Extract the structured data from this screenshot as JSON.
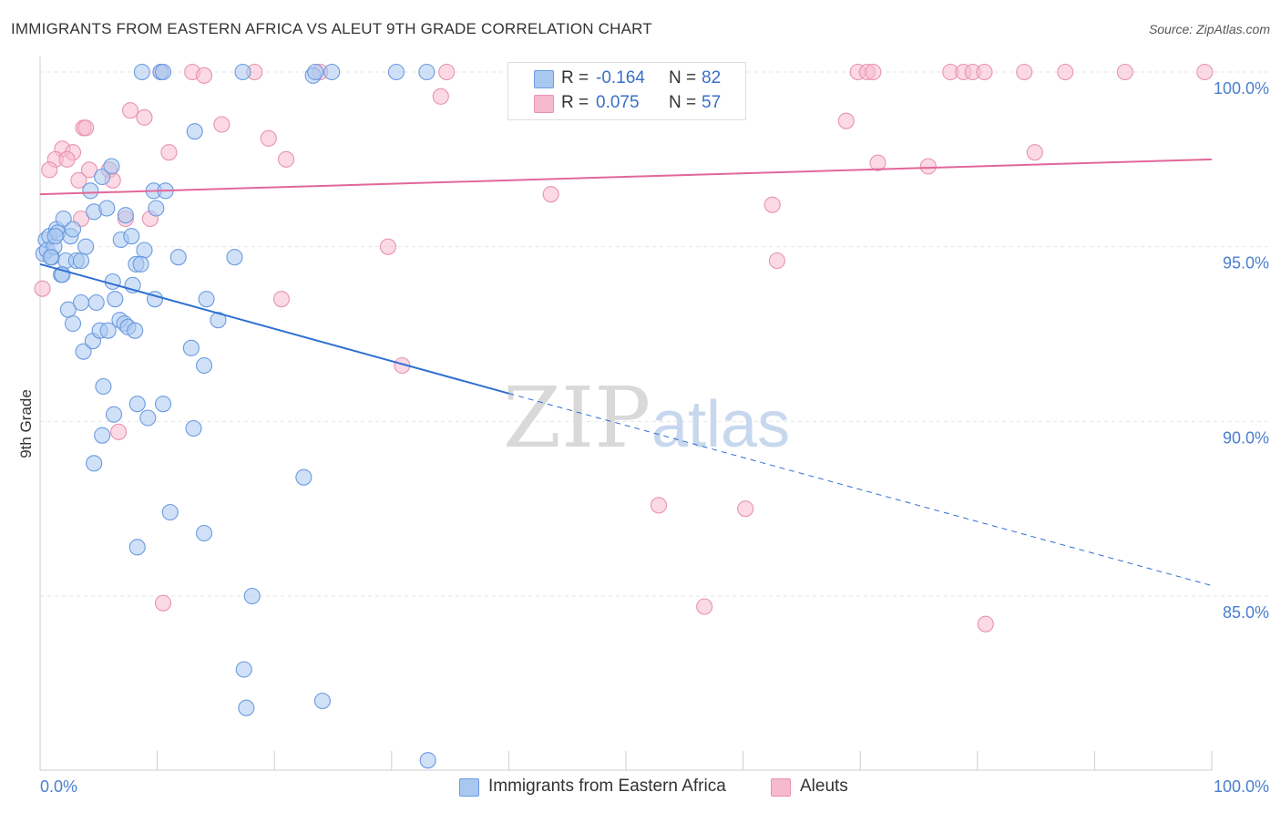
{
  "title": "IMMIGRANTS FROM EASTERN AFRICA VS ALEUT 9TH GRADE CORRELATION CHART",
  "source": "Source: ZipAtlas.com",
  "watermark": {
    "zip": "ZIP",
    "atlas": "atlas"
  },
  "colors": {
    "blue_fill": "#a9c8f0",
    "blue_stroke": "#6b9be0",
    "blue_line": "#2e6fd0",
    "pink_fill": "#f7b9cf",
    "pink_stroke": "#e893b1",
    "pink_line": "#e2679a",
    "grid": "#e6e6e6",
    "tick_label": "#4a7fd0"
  },
  "legend_top": [
    {
      "r_label": "R =",
      "r_value": "-0.164",
      "n_label": "N =",
      "n_value": "82"
    },
    {
      "r_label": "R =",
      "r_value": "0.075",
      "n_label": "N =",
      "n_value": "57"
    }
  ],
  "legend_bottom": [
    "Immigrants from Eastern Africa",
    "Aleuts"
  ],
  "chart_data": {
    "type": "scatter",
    "xlabel": "",
    "ylabel": "9th Grade",
    "xlim": [
      0,
      100
    ],
    "ylim": [
      80,
      100.5
    ],
    "x_tick_labels": [
      "0.0%",
      "100.0%"
    ],
    "y_ticks": [
      {
        "value": 85,
        "label": "85.0%"
      },
      {
        "value": 90,
        "label": "90.0%"
      },
      {
        "value": 95,
        "label": "95.0%"
      },
      {
        "value": 100,
        "label": "100.0%"
      }
    ],
    "series": [
      {
        "name": "Immigrants from Eastern Africa",
        "color": "blue",
        "trend": {
          "x0": 0,
          "y0": 94.5,
          "x1": 40,
          "y1": 90.8,
          "dash_to_x": 100,
          "dash_to_y": 85.3
        },
        "points": [
          [
            8.7,
            100
          ],
          [
            10.3,
            100
          ],
          [
            10.5,
            100
          ],
          [
            17.3,
            100
          ],
          [
            23.3,
            99.9
          ],
          [
            23.5,
            100
          ],
          [
            24.9,
            100
          ],
          [
            30.4,
            100
          ],
          [
            33.0,
            100
          ],
          [
            0.3,
            94.8
          ],
          [
            0.5,
            95.2
          ],
          [
            0.6,
            94.9
          ],
          [
            0.8,
            95.3
          ],
          [
            1.0,
            94.7
          ],
          [
            1.2,
            95.0
          ],
          [
            1.4,
            95.5
          ],
          [
            1.5,
            95.4
          ],
          [
            1.8,
            94.2
          ],
          [
            2.0,
            95.8
          ],
          [
            2.2,
            94.6
          ],
          [
            2.6,
            95.3
          ],
          [
            2.8,
            95.5
          ],
          [
            3.1,
            94.6
          ],
          [
            3.5,
            94.6
          ],
          [
            3.9,
            95.0
          ],
          [
            4.3,
            96.6
          ],
          [
            4.6,
            96.0
          ],
          [
            5.3,
            97.0
          ],
          [
            5.7,
            96.1
          ],
          [
            6.1,
            97.3
          ],
          [
            6.9,
            95.2
          ],
          [
            7.3,
            95.9
          ],
          [
            7.8,
            95.3
          ],
          [
            8.2,
            94.5
          ],
          [
            8.9,
            94.9
          ],
          [
            9.7,
            96.6
          ],
          [
            9.9,
            96.1
          ],
          [
            10.7,
            96.6
          ],
          [
            13.2,
            98.3
          ],
          [
            0.9,
            94.7
          ],
          [
            1.9,
            94.2
          ],
          [
            2.4,
            93.2
          ],
          [
            2.8,
            92.8
          ],
          [
            3.5,
            93.4
          ],
          [
            3.7,
            92.0
          ],
          [
            4.5,
            92.3
          ],
          [
            4.8,
            93.4
          ],
          [
            5.1,
            92.6
          ],
          [
            5.8,
            92.6
          ],
          [
            6.4,
            93.5
          ],
          [
            6.8,
            92.9
          ],
          [
            7.2,
            92.8
          ],
          [
            7.5,
            92.7
          ],
          [
            7.9,
            93.9
          ],
          [
            8.1,
            92.6
          ],
          [
            8.6,
            94.5
          ],
          [
            9.8,
            93.5
          ],
          [
            12.9,
            92.1
          ],
          [
            14.0,
            91.6
          ],
          [
            14.2,
            93.5
          ],
          [
            15.2,
            92.9
          ],
          [
            16.6,
            94.7
          ],
          [
            5.4,
            91.0
          ],
          [
            6.3,
            90.2
          ],
          [
            8.3,
            90.5
          ],
          [
            9.2,
            90.1
          ],
          [
            10.5,
            90.5
          ],
          [
            13.1,
            89.8
          ],
          [
            5.3,
            89.6
          ],
          [
            4.6,
            88.8
          ],
          [
            11.1,
            87.4
          ],
          [
            14.0,
            86.8
          ],
          [
            8.3,
            86.4
          ],
          [
            18.1,
            85.0
          ],
          [
            17.4,
            82.9
          ],
          [
            17.6,
            81.8
          ],
          [
            24.1,
            82.0
          ],
          [
            22.5,
            88.4
          ],
          [
            33.1,
            80.3
          ],
          [
            6.2,
            94.0
          ],
          [
            1.3,
            95.3
          ],
          [
            11.8,
            94.7
          ]
        ]
      },
      {
        "name": "Aleuts",
        "color": "pink",
        "trend": {
          "x0": 0,
          "y0": 96.5,
          "x1": 100,
          "y1": 97.5
        },
        "points": [
          [
            10.3,
            100
          ],
          [
            13.0,
            100
          ],
          [
            14.0,
            99.9
          ],
          [
            18.3,
            100
          ],
          [
            23.9,
            100
          ],
          [
            34.7,
            100
          ],
          [
            47.0,
            100
          ],
          [
            48.8,
            100
          ],
          [
            69.8,
            100
          ],
          [
            70.6,
            100
          ],
          [
            71.1,
            100
          ],
          [
            77.7,
            100
          ],
          [
            78.8,
            100
          ],
          [
            79.6,
            100
          ],
          [
            80.6,
            100
          ],
          [
            84.0,
            100
          ],
          [
            87.5,
            100
          ],
          [
            92.6,
            100
          ],
          [
            99.4,
            100
          ],
          [
            34.2,
            99.3
          ],
          [
            7.7,
            98.9
          ],
          [
            8.9,
            98.7
          ],
          [
            3.7,
            98.4
          ],
          [
            3.9,
            98.4
          ],
          [
            15.5,
            98.5
          ],
          [
            19.5,
            98.1
          ],
          [
            68.8,
            98.6
          ],
          [
            1.9,
            97.8
          ],
          [
            2.8,
            97.7
          ],
          [
            4.2,
            97.2
          ],
          [
            1.3,
            97.5
          ],
          [
            2.3,
            97.5
          ],
          [
            0.8,
            97.2
          ],
          [
            11.0,
            97.7
          ],
          [
            21.0,
            97.5
          ],
          [
            5.9,
            97.2
          ],
          [
            6.2,
            96.9
          ],
          [
            71.5,
            97.4
          ],
          [
            75.8,
            97.3
          ],
          [
            84.9,
            97.7
          ],
          [
            43.6,
            96.5
          ],
          [
            62.5,
            96.2
          ],
          [
            7.3,
            95.8
          ],
          [
            9.4,
            95.8
          ],
          [
            3.5,
            95.8
          ],
          [
            29.7,
            95.0
          ],
          [
            62.9,
            94.6
          ],
          [
            20.6,
            93.5
          ],
          [
            0.2,
            93.8
          ],
          [
            30.9,
            91.6
          ],
          [
            6.7,
            89.7
          ],
          [
            52.8,
            87.6
          ],
          [
            60.2,
            87.5
          ],
          [
            10.5,
            84.8
          ],
          [
            56.7,
            84.7
          ],
          [
            80.7,
            84.2
          ],
          [
            3.3,
            96.9
          ]
        ]
      }
    ]
  }
}
